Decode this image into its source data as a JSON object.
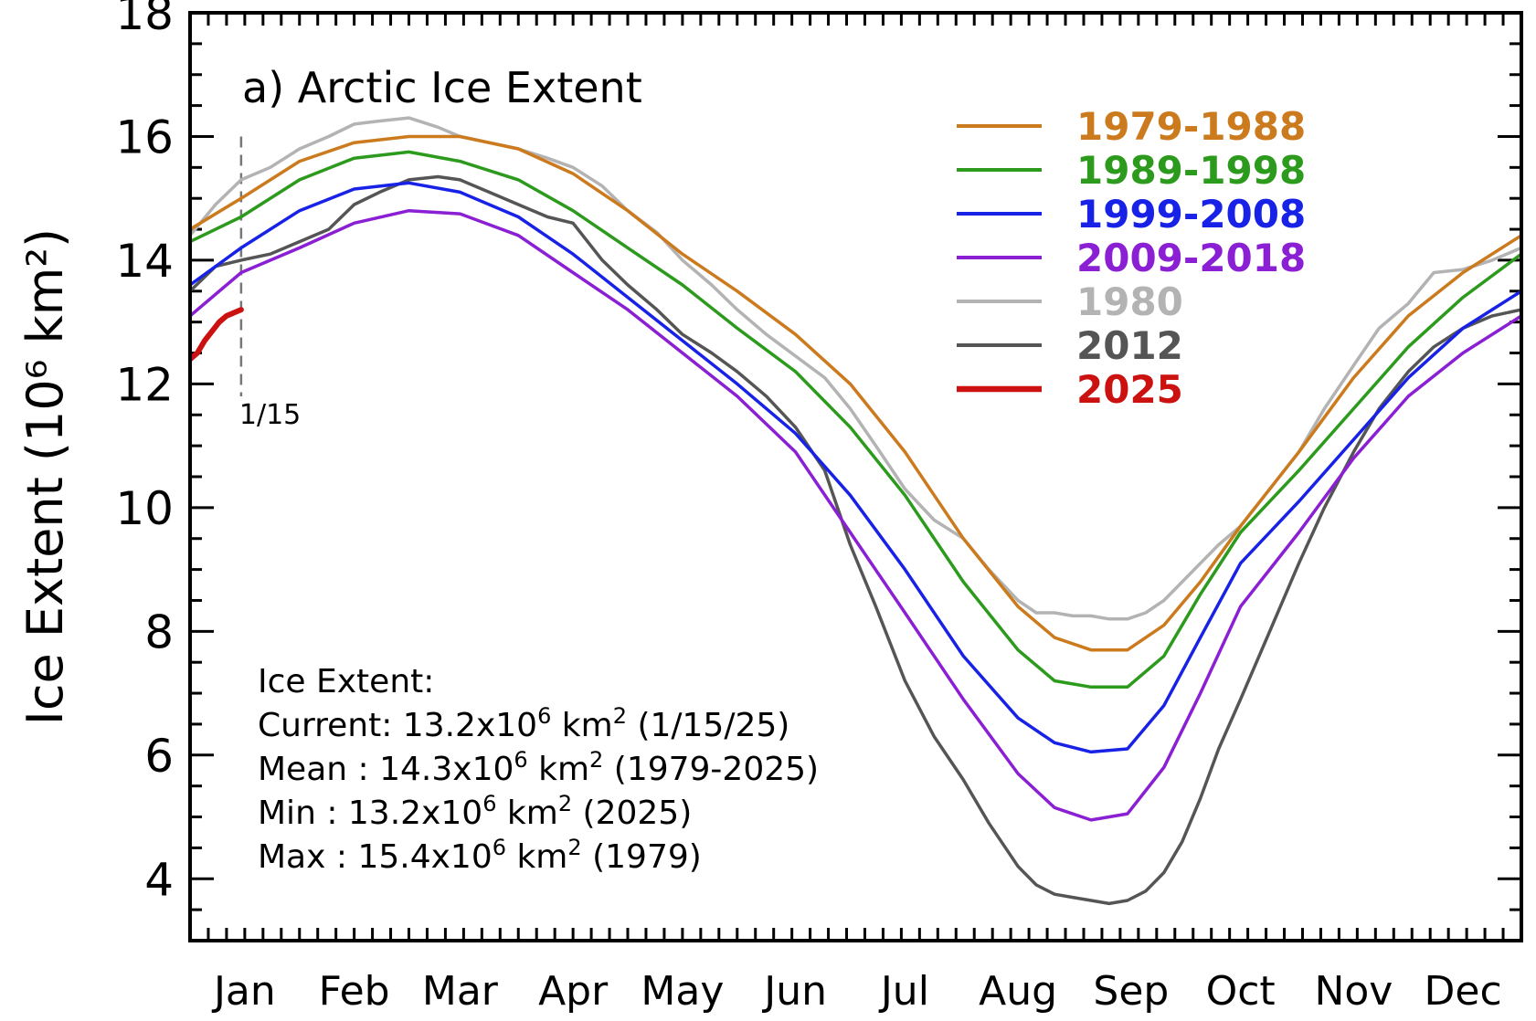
{
  "chart_data": {
    "type": "line",
    "title": "a) Arctic Ice Extent",
    "ylabel": "Ice Extent (10⁶ km²)",
    "xlabel": "",
    "ylim": [
      3,
      18
    ],
    "xlim": [
      0,
      365
    ],
    "yticks": [
      "4",
      "6",
      "8",
      "10",
      "12",
      "14",
      "16",
      "18"
    ],
    "months": [
      "Jan",
      "Feb",
      "Mar",
      "Apr",
      "May",
      "Jun",
      "Jul",
      "Aug",
      "Sep",
      "Oct",
      "Nov",
      "Dec"
    ],
    "month_centers": [
      15,
      45,
      74,
      105,
      135,
      166,
      196,
      227,
      258,
      288,
      319,
      349
    ],
    "marker": {
      "label": "1/15",
      "day": 14
    },
    "legend_position": "top-right",
    "series": [
      {
        "name": "1979-1988",
        "color": "#cc7a1e",
        "width": 3.5,
        "x": [
          0,
          14,
          30,
          45,
          60,
          74,
          90,
          105,
          120,
          135,
          150,
          166,
          181,
          196,
          212,
          227,
          237,
          247,
          257,
          267,
          277,
          288,
          304,
          319,
          334,
          349,
          365
        ],
        "y": [
          14.5,
          15.0,
          15.6,
          15.9,
          16.0,
          16.0,
          15.8,
          15.4,
          14.8,
          14.1,
          13.5,
          12.8,
          12.0,
          10.9,
          9.5,
          8.4,
          7.9,
          7.7,
          7.7,
          8.1,
          8.8,
          9.7,
          10.9,
          12.1,
          13.1,
          13.8,
          14.4
        ]
      },
      {
        "name": "1989-1998",
        "color": "#2c9a1c",
        "width": 3.5,
        "x": [
          0,
          14,
          30,
          45,
          60,
          74,
          90,
          105,
          120,
          135,
          150,
          166,
          181,
          196,
          212,
          227,
          237,
          247,
          257,
          267,
          277,
          288,
          304,
          319,
          334,
          349,
          365
        ],
        "y": [
          14.3,
          14.7,
          15.3,
          15.65,
          15.75,
          15.6,
          15.3,
          14.8,
          14.2,
          13.6,
          12.9,
          12.2,
          11.3,
          10.2,
          8.8,
          7.7,
          7.2,
          7.1,
          7.1,
          7.6,
          8.6,
          9.6,
          10.6,
          11.6,
          12.6,
          13.4,
          14.1
        ]
      },
      {
        "name": "1999-2008",
        "color": "#1822e6",
        "width": 3.5,
        "x": [
          0,
          14,
          30,
          45,
          60,
          74,
          90,
          105,
          120,
          135,
          150,
          166,
          181,
          196,
          212,
          227,
          237,
          247,
          257,
          267,
          277,
          288,
          304,
          319,
          334,
          349,
          365
        ],
        "y": [
          13.6,
          14.2,
          14.8,
          15.15,
          15.25,
          15.1,
          14.7,
          14.1,
          13.4,
          12.7,
          12.0,
          11.2,
          10.2,
          9.0,
          7.6,
          6.6,
          6.2,
          6.05,
          6.1,
          6.8,
          7.9,
          9.1,
          10.1,
          11.1,
          12.1,
          12.9,
          13.5
        ]
      },
      {
        "name": "2009-2018",
        "color": "#8a1fd4",
        "width": 3.5,
        "x": [
          0,
          14,
          30,
          45,
          60,
          74,
          90,
          105,
          120,
          135,
          150,
          166,
          181,
          196,
          212,
          227,
          237,
          247,
          257,
          267,
          277,
          288,
          304,
          319,
          334,
          349,
          365
        ],
        "y": [
          13.1,
          13.8,
          14.2,
          14.6,
          14.8,
          14.75,
          14.4,
          13.8,
          13.2,
          12.5,
          11.8,
          10.9,
          9.6,
          8.3,
          6.9,
          5.7,
          5.15,
          4.95,
          5.05,
          5.8,
          7.0,
          8.4,
          9.6,
          10.8,
          11.8,
          12.5,
          13.1
        ]
      },
      {
        "name": "1980",
        "color": "#b3b3b3",
        "width": 3.5,
        "x": [
          0,
          7,
          14,
          22,
          30,
          38,
          45,
          52,
          60,
          68,
          74,
          82,
          90,
          98,
          105,
          113,
          120,
          128,
          135,
          143,
          150,
          158,
          166,
          174,
          181,
          188,
          196,
          204,
          212,
          219,
          227,
          232,
          237,
          242,
          247,
          252,
          257,
          262,
          267,
          272,
          277,
          282,
          288,
          296,
          304,
          311,
          319,
          326,
          334,
          341,
          349,
          357,
          365
        ],
        "y": [
          14.4,
          14.9,
          15.3,
          15.5,
          15.8,
          16.0,
          16.2,
          16.25,
          16.3,
          16.15,
          16.0,
          15.9,
          15.8,
          15.65,
          15.5,
          15.2,
          14.8,
          14.45,
          14.0,
          13.6,
          13.2,
          12.8,
          12.45,
          12.1,
          11.6,
          11.0,
          10.3,
          9.8,
          9.5,
          9.0,
          8.5,
          8.3,
          8.3,
          8.25,
          8.25,
          8.2,
          8.2,
          8.3,
          8.5,
          8.8,
          9.1,
          9.4,
          9.7,
          10.3,
          10.9,
          11.6,
          12.3,
          12.9,
          13.3,
          13.8,
          13.85,
          14.0,
          14.2
        ]
      },
      {
        "name": "2012",
        "color": "#555555",
        "width": 3.5,
        "x": [
          0,
          7,
          14,
          22,
          30,
          38,
          45,
          52,
          60,
          68,
          74,
          82,
          90,
          98,
          105,
          113,
          120,
          128,
          135,
          143,
          150,
          158,
          166,
          174,
          181,
          188,
          196,
          204,
          212,
          219,
          227,
          232,
          237,
          242,
          247,
          252,
          257,
          262,
          267,
          272,
          277,
          282,
          288,
          296,
          304,
          311,
          319,
          326,
          334,
          341,
          349,
          357,
          365
        ],
        "y": [
          13.5,
          13.9,
          14.0,
          14.1,
          14.3,
          14.5,
          14.9,
          15.1,
          15.3,
          15.35,
          15.3,
          15.1,
          14.9,
          14.7,
          14.6,
          14.0,
          13.6,
          13.2,
          12.8,
          12.5,
          12.2,
          11.8,
          11.3,
          10.6,
          9.4,
          8.4,
          7.2,
          6.3,
          5.6,
          4.9,
          4.2,
          3.9,
          3.75,
          3.7,
          3.65,
          3.6,
          3.65,
          3.8,
          4.1,
          4.6,
          5.3,
          6.1,
          6.9,
          8.0,
          9.1,
          10.0,
          10.9,
          11.6,
          12.2,
          12.6,
          12.9,
          13.1,
          13.2
        ]
      },
      {
        "name": "2025",
        "color": "#cc1111",
        "width": 6,
        "x": [
          0,
          2,
          4,
          6,
          8,
          10,
          12,
          14
        ],
        "y": [
          12.4,
          12.5,
          12.7,
          12.85,
          13.0,
          13.1,
          13.15,
          13.2
        ]
      }
    ],
    "stats": {
      "heading": "Ice Extent:",
      "rows": [
        {
          "label": "Current:",
          "value": "13.2x10",
          "sup1": "6",
          "unit": " km",
          "sup2": "2",
          "note": " (1/15/25)"
        },
        {
          "label": "Mean   :",
          "value": "14.3x10",
          "sup1": "6",
          "unit": " km",
          "sup2": "2",
          "note": " (1979-2025)"
        },
        {
          "label": "Min     :",
          "value": "13.2x10",
          "sup1": "6",
          "unit": " km",
          "sup2": "2",
          "note": " (2025)"
        },
        {
          "label": "Max    :",
          "value": "15.4x10",
          "sup1": "6",
          "unit": " km",
          "sup2": "2",
          "note": " (1979)"
        }
      ]
    }
  }
}
